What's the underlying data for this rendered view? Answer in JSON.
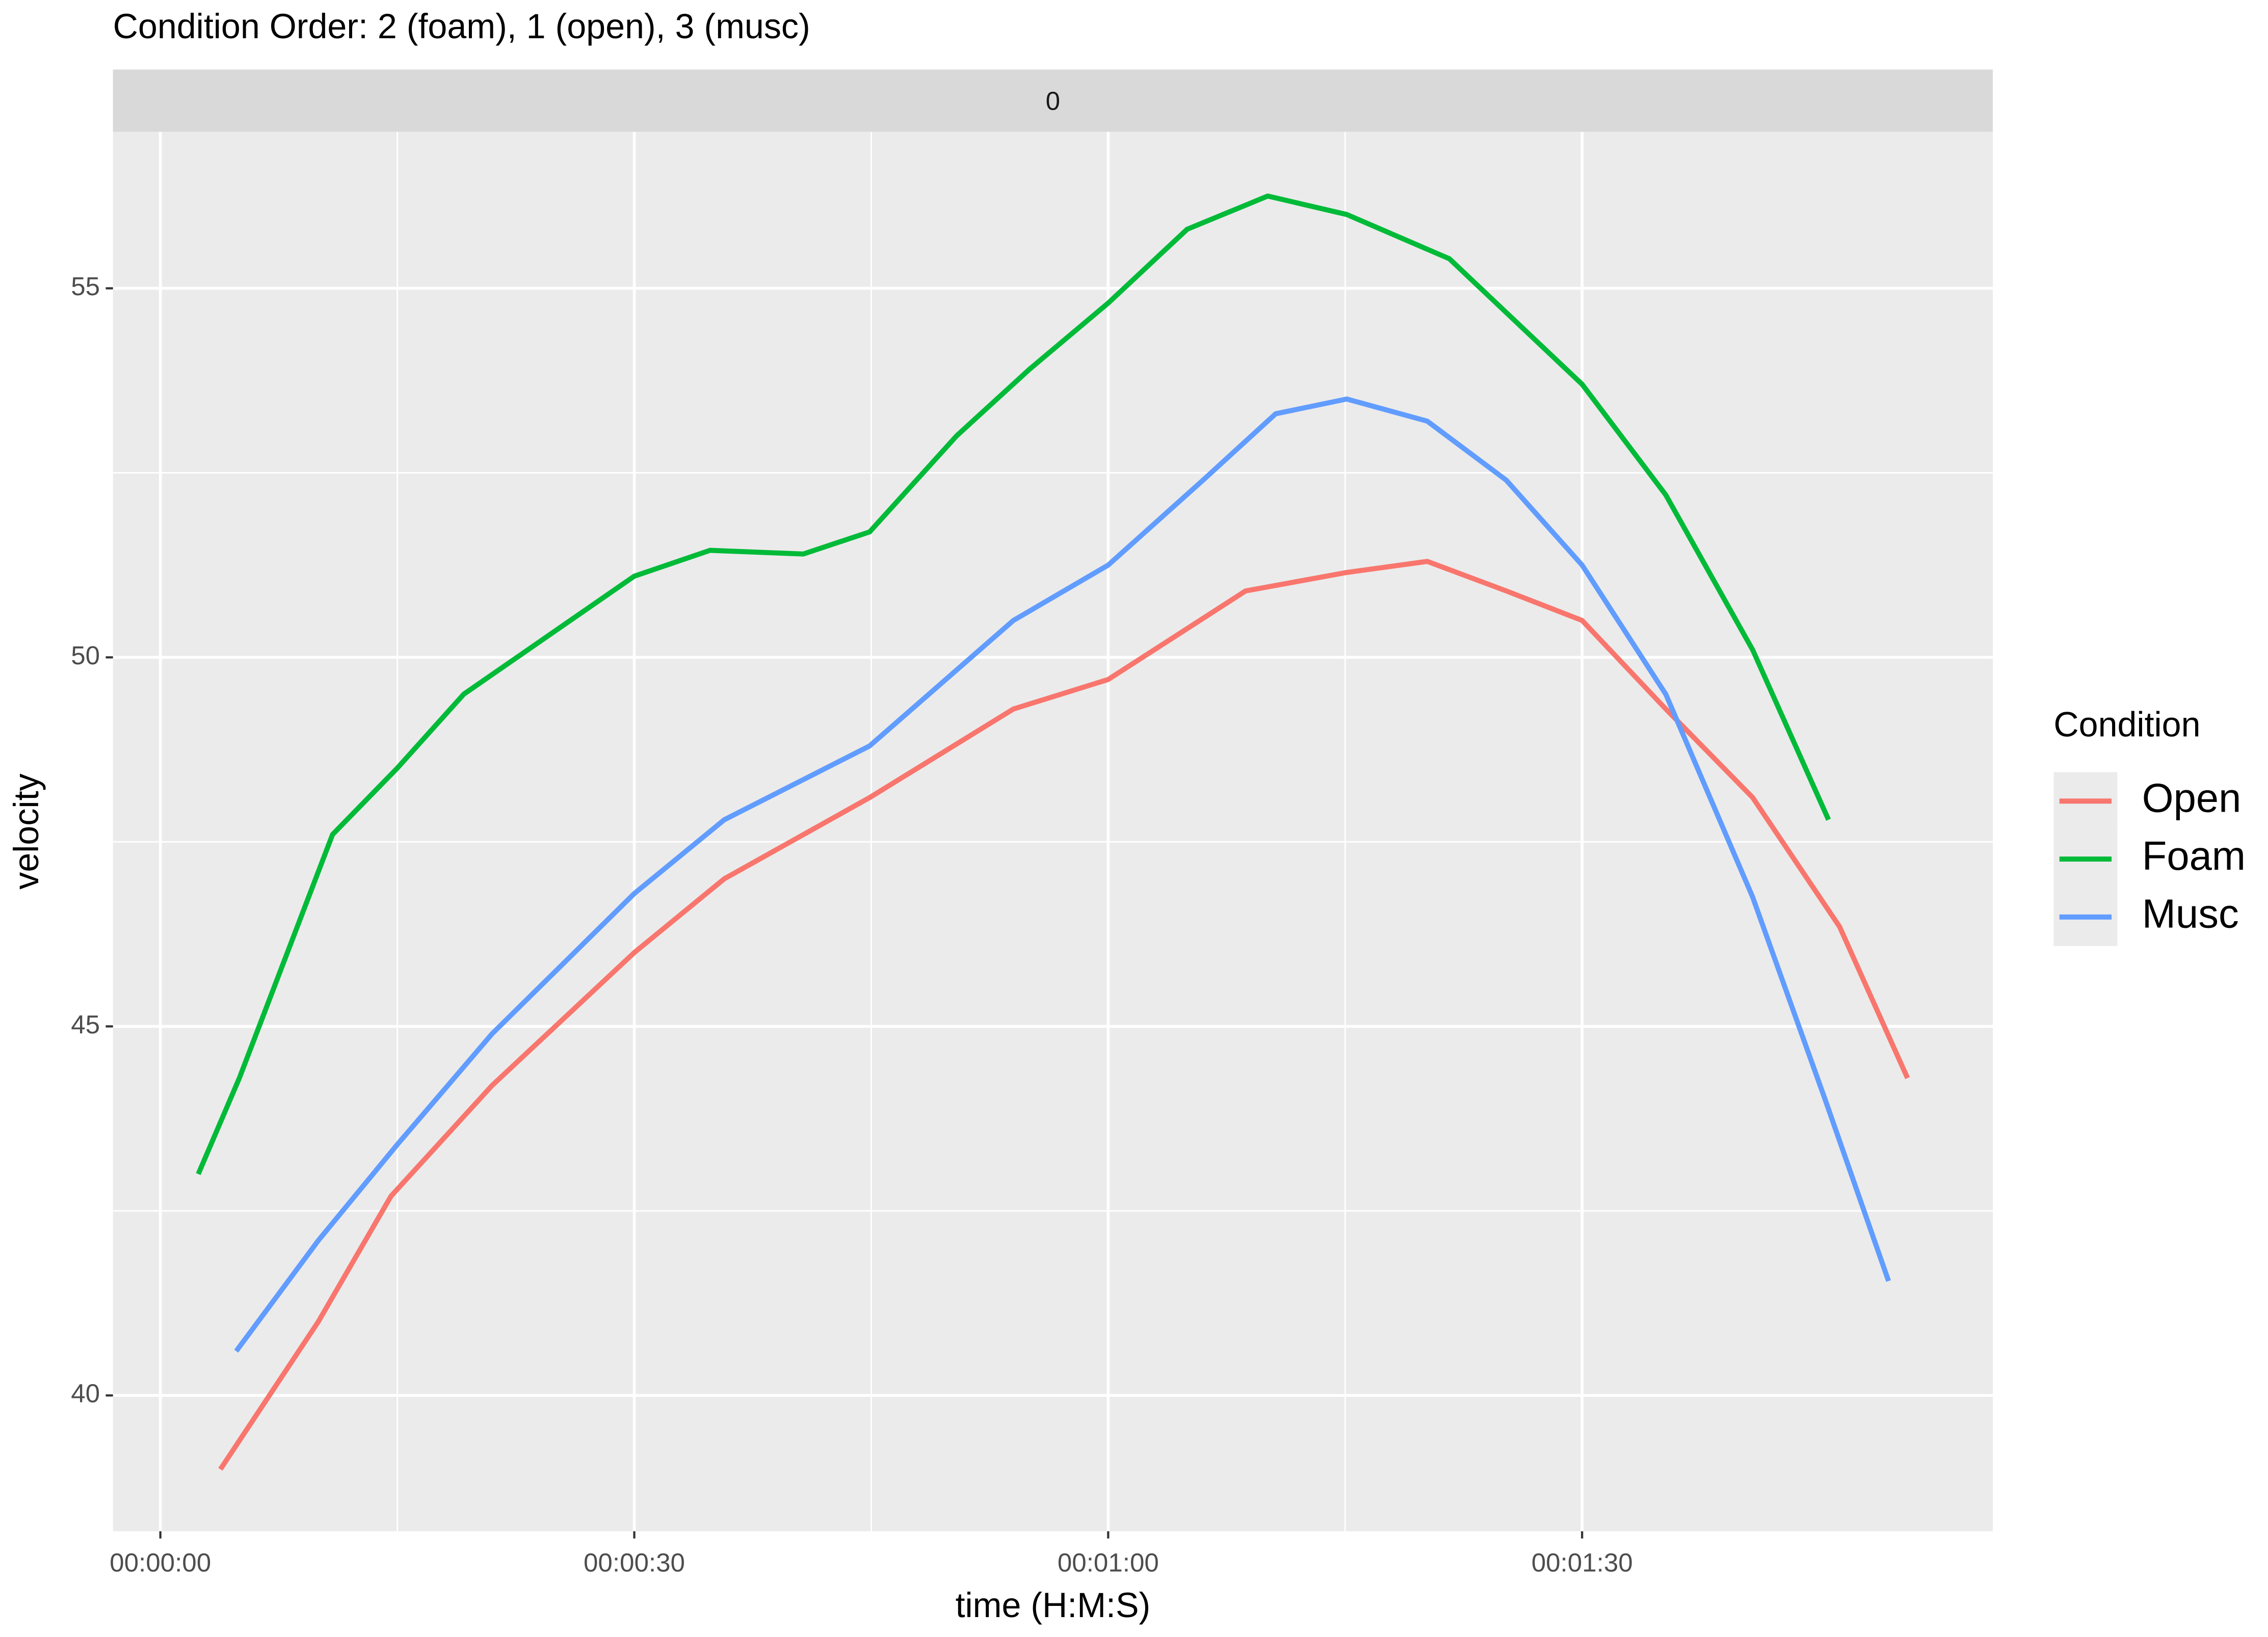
{
  "chart_data": {
    "type": "line",
    "title": "Condition Order: 2 (foam), 1 (open), 3 (musc)",
    "facet_label": "0",
    "x_label": "time (H:M:S)",
    "y_label": "velocity",
    "legend_title": "Condition",
    "xlim": [
      -3,
      116
    ],
    "ylim": [
      38.16,
      57.12
    ],
    "xticks": [
      {
        "value": 0,
        "label": "00:00:00"
      },
      {
        "value": 30,
        "label": "00:00:30"
      },
      {
        "value": 60,
        "label": "00:01:00"
      },
      {
        "value": 90,
        "label": "00:01:30"
      }
    ],
    "xminorticks": [
      15,
      45,
      75
    ],
    "yticks": [
      40,
      45,
      50,
      55
    ],
    "yminorticks": [
      42.5,
      47.5,
      52.5
    ],
    "grid": true,
    "series": [
      {
        "name": "Open",
        "color": "#F8766D",
        "x": [
          3.8,
          10,
          14.6,
          21,
          30,
          35.7,
          44.9,
          54,
          60,
          68.7,
          75.1,
          80.2,
          85.2,
          90,
          95.3,
          100.8,
          106.3,
          110.6
        ],
        "values": [
          39.0,
          41.0,
          42.7,
          44.2,
          46.0,
          47.0,
          48.1,
          49.3,
          49.7,
          50.9,
          51.15,
          51.3,
          50.9,
          50.5,
          49.3,
          48.1,
          46.35,
          44.3
        ]
      },
      {
        "name": "Foam",
        "color": "#00BA38",
        "x": [
          2.4,
          5,
          10.9,
          15,
          19.2,
          30,
          34.8,
          40.7,
          44.9,
          50.4,
          55,
          60,
          65,
          70.1,
          75.1,
          81.6,
          90,
          95.3,
          100.8,
          105.6
        ],
        "values": [
          43.0,
          44.3,
          47.6,
          48.5,
          49.5,
          51.1,
          51.45,
          51.4,
          51.7,
          53.0,
          53.9,
          54.8,
          55.8,
          56.25,
          56.0,
          55.4,
          53.7,
          52.2,
          50.1,
          47.8
        ]
      },
      {
        "name": "Musc",
        "color": "#619CFF",
        "x": [
          4.8,
          10,
          15,
          21,
          30,
          35.7,
          44.9,
          54,
          60,
          66,
          70.6,
          75.1,
          80.2,
          85.2,
          90,
          95.3,
          100.8,
          105.4,
          109.4
        ],
        "values": [
          40.6,
          42.1,
          43.4,
          44.9,
          46.8,
          47.8,
          48.8,
          50.5,
          51.25,
          52.4,
          53.3,
          53.5,
          53.2,
          52.4,
          51.25,
          49.5,
          46.75,
          44.0,
          41.55
        ]
      }
    ]
  }
}
